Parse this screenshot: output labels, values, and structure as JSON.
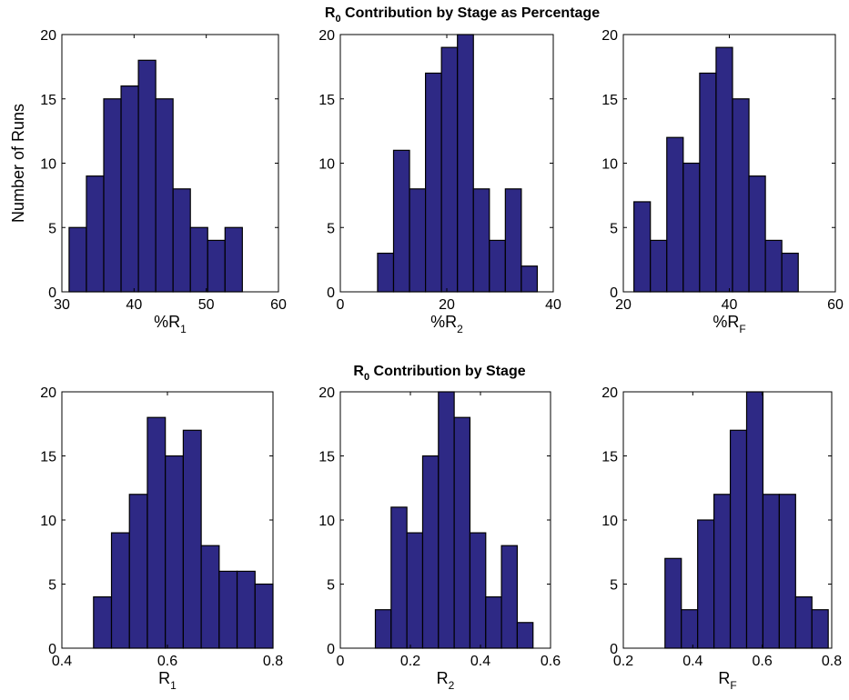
{
  "colors": {
    "bar_fill": "#2e2985",
    "bar_edge": "#000000",
    "axes": "#000000",
    "background": "#ffffff"
  },
  "titles": [
    {
      "base": "R",
      "sub": "0",
      "rest": " Contribution by Stage as Percentage"
    },
    {
      "base": "R",
      "sub": "0",
      "rest": " Contribution by Stage"
    }
  ],
  "chart_data": [
    {
      "type": "bar",
      "histogram": true,
      "title": "R0 Contribution by Stage as Percentage",
      "xlabel": {
        "base": "%R",
        "sub": "1"
      },
      "ylabel": "Number of Runs",
      "xlim": [
        30,
        60
      ],
      "ylim": [
        0,
        20
      ],
      "xticks": [
        "30",
        "40",
        "50",
        "60"
      ],
      "yticks": [
        "0",
        "5",
        "10",
        "15",
        "20"
      ],
      "bin_edges": [
        31,
        33.4,
        35.8,
        38.2,
        40.6,
        43.0,
        45.4,
        47.8,
        50.2,
        52.6,
        55.0
      ],
      "values": [
        5,
        9,
        15,
        16,
        18,
        15,
        8,
        5,
        4,
        5
      ]
    },
    {
      "type": "bar",
      "histogram": true,
      "title": "",
      "xlabel": {
        "base": "%R",
        "sub": "2"
      },
      "ylabel": "",
      "xlim": [
        0,
        40
      ],
      "ylim": [
        0,
        20
      ],
      "xticks": [
        "0",
        "20",
        "40"
      ],
      "yticks": [
        "0",
        "5",
        "10",
        "15",
        "20"
      ],
      "bin_edges": [
        7,
        10,
        13,
        16,
        19,
        22,
        25,
        28,
        31,
        34,
        37
      ],
      "values": [
        3,
        11,
        8,
        17,
        19,
        20,
        8,
        4,
        8,
        2
      ]
    },
    {
      "type": "bar",
      "histogram": true,
      "title": "",
      "xlabel": {
        "base": "%R",
        "sub": "F"
      },
      "ylabel": "",
      "xlim": [
        20,
        60
      ],
      "ylim": [
        0,
        20
      ],
      "xticks": [
        "20",
        "40",
        "60"
      ],
      "yticks": [
        "0",
        "5",
        "10",
        "15",
        "20"
      ],
      "bin_edges": [
        22,
        25.1,
        28.2,
        31.3,
        34.4,
        37.5,
        40.6,
        43.7,
        46.8,
        49.9,
        53
      ],
      "values": [
        7,
        4,
        12,
        10,
        17,
        19,
        15,
        9,
        4,
        3
      ]
    },
    {
      "type": "bar",
      "histogram": true,
      "title": "R0 Contribution by Stage",
      "xlabel": {
        "base": "R",
        "sub": "1"
      },
      "ylabel": "",
      "xlim": [
        0.4,
        0.8
      ],
      "ylim": [
        0,
        20
      ],
      "xticks": [
        "0.4",
        "0.6",
        "0.8"
      ],
      "yticks": [
        "0",
        "5",
        "10",
        "15",
        "20"
      ],
      "bin_edges": [
        0.46,
        0.494,
        0.528,
        0.562,
        0.596,
        0.63,
        0.664,
        0.698,
        0.732,
        0.766,
        0.8
      ],
      "values": [
        4,
        9,
        12,
        18,
        15,
        17,
        8,
        6,
        6,
        5
      ]
    },
    {
      "type": "bar",
      "histogram": true,
      "title": "",
      "xlabel": {
        "base": "R",
        "sub": "2"
      },
      "ylabel": "",
      "xlim": [
        0,
        0.6
      ],
      "ylim": [
        0,
        20
      ],
      "xticks": [
        "0",
        "0.2",
        "0.4",
        "0.6"
      ],
      "yticks": [
        "0",
        "5",
        "10",
        "15",
        "20"
      ],
      "bin_edges": [
        0.1,
        0.145,
        0.19,
        0.235,
        0.28,
        0.325,
        0.37,
        0.415,
        0.46,
        0.505,
        0.55
      ],
      "values": [
        3,
        11,
        9,
        15,
        20,
        18,
        9,
        4,
        8,
        2
      ]
    },
    {
      "type": "bar",
      "histogram": true,
      "title": "",
      "xlabel": {
        "base": "R",
        "sub": "F"
      },
      "ylabel": "",
      "xlim": [
        0.2,
        0.8
      ],
      "ylim": [
        0,
        20
      ],
      "xticks": [
        "0.2",
        "0.4",
        "0.6",
        "0.8"
      ],
      "yticks": [
        "0",
        "5",
        "10",
        "15",
        "20"
      ],
      "bin_edges": [
        0.32,
        0.367,
        0.414,
        0.461,
        0.508,
        0.555,
        0.602,
        0.649,
        0.696,
        0.743,
        0.79
      ],
      "values": [
        7,
        3,
        10,
        12,
        17,
        20,
        12,
        12,
        4,
        3
      ]
    }
  ]
}
